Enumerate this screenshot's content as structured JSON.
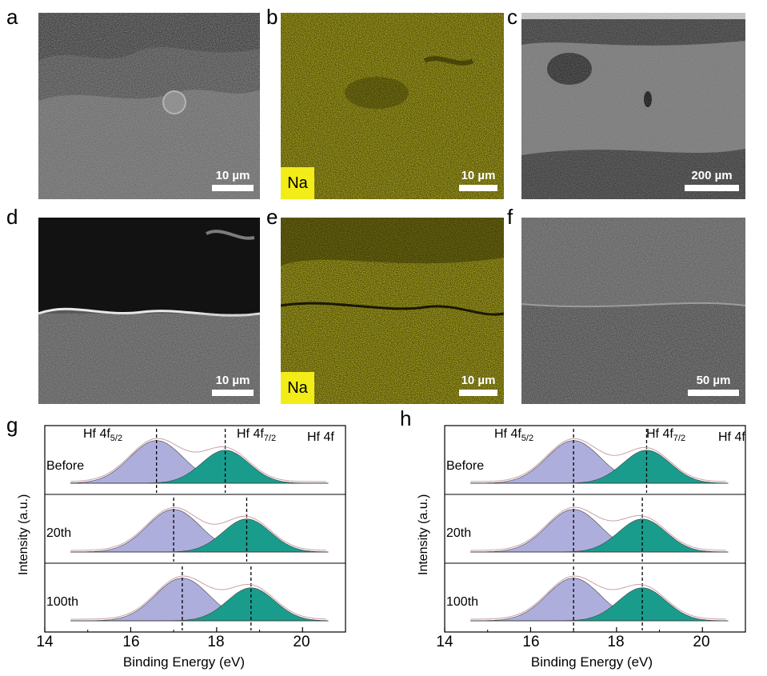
{
  "panels": {
    "a": {
      "label": "a",
      "scale": "10 µm"
    },
    "b": {
      "label": "b",
      "scale": "10 µm",
      "element": "Na"
    },
    "c": {
      "label": "c",
      "scale": "200 µm"
    },
    "d": {
      "label": "d",
      "scale": "10 µm"
    },
    "e": {
      "label": "e",
      "scale": "10 µm",
      "element": "Na"
    },
    "f": {
      "label": "f",
      "scale": "50 µm"
    }
  },
  "xps_g": {
    "label": "g",
    "ylabel": "Intensity (a.u.)",
    "xlabel": "Binding Energy (eV)",
    "ticks": [
      "14",
      "16",
      "18",
      "20"
    ],
    "region": "Hf 4f",
    "peak1": {
      "main": "Hf 4f",
      "sub": "5/2"
    },
    "peak2": {
      "main": "Hf 4f",
      "sub": "7/2"
    },
    "rows": [
      "Before",
      "20th",
      "100th"
    ]
  },
  "xps_h": {
    "label": "h",
    "ylabel": "Intensity (a.u.)",
    "xlabel": "Binding Energy (eV)",
    "ticks": [
      "14",
      "16",
      "18",
      "20"
    ],
    "region": "Hf 4f",
    "peak1": {
      "main": "Hf 4f",
      "sub": "5/2"
    },
    "peak2": {
      "main": "Hf 4f",
      "sub": "7/2"
    },
    "rows": [
      "Before",
      "20th",
      "100th"
    ]
  },
  "chart_data": [
    {
      "type": "area",
      "panel": "g",
      "xlabel": "Binding Energy (eV)",
      "ylabel": "Intensity (a.u.)",
      "xlim": [
        14,
        21
      ],
      "series": [
        {
          "name": "Before",
          "peak_centers_eV": [
            16.6,
            18.2
          ],
          "fill_colors": [
            "#aeaedd",
            "#1a9c8c"
          ]
        },
        {
          "name": "20th",
          "peak_centers_eV": [
            17.0,
            18.7
          ],
          "fill_colors": [
            "#aeaedd",
            "#1a9c8c"
          ]
        },
        {
          "name": "100th",
          "peak_centers_eV": [
            17.2,
            18.8
          ],
          "fill_colors": [
            "#aeaedd",
            "#1a9c8c"
          ]
        }
      ]
    },
    {
      "type": "area",
      "panel": "h",
      "xlabel": "Binding Energy (eV)",
      "ylabel": "Intensity (a.u.)",
      "xlim": [
        14,
        21
      ],
      "series": [
        {
          "name": "Before",
          "peak_centers_eV": [
            17.0,
            18.7
          ],
          "fill_colors": [
            "#aeaedd",
            "#1a9c8c"
          ]
        },
        {
          "name": "20th",
          "peak_centers_eV": [
            17.0,
            18.6
          ],
          "fill_colors": [
            "#aeaedd",
            "#1a9c8c"
          ]
        },
        {
          "name": "100th",
          "peak_centers_eV": [
            17.0,
            18.6
          ],
          "fill_colors": [
            "#aeaedd",
            "#1a9c8c"
          ]
        }
      ]
    }
  ]
}
